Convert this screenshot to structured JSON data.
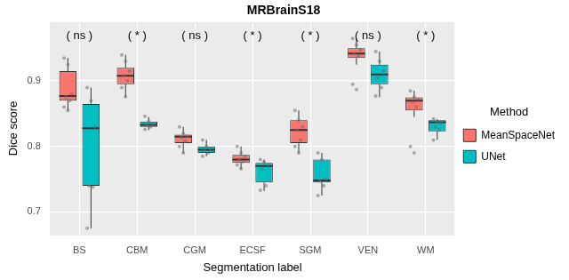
{
  "chart_data": {
    "type": "boxplot",
    "title": "MRBrainS18",
    "x_label": "Segmentation label",
    "y_label": "Dice score",
    "categories": [
      "BS",
      "CBM",
      "CGM",
      "ECSF",
      "SGM",
      "VEN",
      "WM"
    ],
    "annotations": [
      "( ns )",
      "( * )",
      "( ns )",
      "( * )",
      "( * )",
      "( ns )",
      "( * )"
    ],
    "ylim": [
      0.665,
      0.99
    ],
    "yticks": [
      0.7,
      0.8,
      0.9
    ],
    "grid": true,
    "legend": "right",
    "legend_title": "Method",
    "series": [
      {
        "name": "MeanSpaceNet",
        "color": "#F8766D",
        "boxes": [
          {
            "min": 0.855,
            "q1": 0.87,
            "median": 0.877,
            "q3": 0.915,
            "max": 0.935
          },
          {
            "min": 0.875,
            "q1": 0.895,
            "median": 0.908,
            "q3": 0.92,
            "max": 0.94
          },
          {
            "min": 0.79,
            "q1": 0.805,
            "median": 0.815,
            "q3": 0.818,
            "max": 0.83
          },
          {
            "min": 0.765,
            "q1": 0.775,
            "median": 0.78,
            "q3": 0.787,
            "max": 0.8
          },
          {
            "min": 0.79,
            "q1": 0.805,
            "median": 0.825,
            "q3": 0.84,
            "max": 0.855
          },
          {
            "min": 0.925,
            "q1": 0.935,
            "median": 0.942,
            "q3": 0.95,
            "max": 0.965
          },
          {
            "min": 0.845,
            "q1": 0.855,
            "median": 0.87,
            "q3": 0.875,
            "max": 0.885
          }
        ],
        "points": [
          [
            0.935,
            0.925,
            0.88,
            0.876,
            0.87,
            0.86,
            0.855
          ],
          [
            0.94,
            0.93,
            0.915,
            0.908,
            0.9,
            0.89,
            0.876
          ],
          [
            0.83,
            0.82,
            0.816,
            0.814,
            0.808,
            0.8,
            0.79
          ],
          [
            0.8,
            0.79,
            0.785,
            0.78,
            0.777,
            0.772,
            0.766
          ],
          [
            0.855,
            0.84,
            0.83,
            0.825,
            0.81,
            0.8,
            0.79
          ],
          [
            0.965,
            0.955,
            0.948,
            0.942,
            0.938,
            0.895,
            0.887
          ],
          [
            0.885,
            0.875,
            0.872,
            0.868,
            0.86,
            0.8,
            0.79
          ]
        ]
      },
      {
        "name": "UNet",
        "color": "#00BFC4",
        "boxes": [
          {
            "min": 0.675,
            "q1": 0.74,
            "median": 0.828,
            "q3": 0.865,
            "max": 0.89
          },
          {
            "min": 0.825,
            "q1": 0.83,
            "median": 0.833,
            "q3": 0.838,
            "max": 0.845
          },
          {
            "min": 0.785,
            "q1": 0.79,
            "median": 0.795,
            "q3": 0.8,
            "max": 0.81
          },
          {
            "min": 0.732,
            "q1": 0.745,
            "median": 0.77,
            "q3": 0.775,
            "max": 0.78
          },
          {
            "min": 0.725,
            "q1": 0.745,
            "median": 0.748,
            "q3": 0.78,
            "max": 0.79
          },
          {
            "min": 0.875,
            "q1": 0.895,
            "median": 0.91,
            "q3": 0.925,
            "max": 0.945
          },
          {
            "min": 0.81,
            "q1": 0.823,
            "median": 0.837,
            "q3": 0.84,
            "max": 0.842
          }
        ],
        "points": [
          [
            0.89,
            0.87,
            0.83,
            0.74,
            0.738,
            0.675
          ],
          [
            0.846,
            0.838,
            0.835,
            0.832,
            0.83,
            0.826
          ],
          [
            0.81,
            0.8,
            0.797,
            0.793,
            0.79,
            0.785
          ],
          [
            0.78,
            0.776,
            0.772,
            0.765,
            0.74,
            0.733
          ],
          [
            0.79,
            0.78,
            0.75,
            0.747,
            0.74,
            0.725
          ],
          [
            0.945,
            0.93,
            0.915,
            0.905,
            0.89,
            0.877
          ],
          [
            0.842,
            0.838,
            0.836,
            0.83,
            0.825,
            0.81
          ]
        ]
      }
    ]
  }
}
